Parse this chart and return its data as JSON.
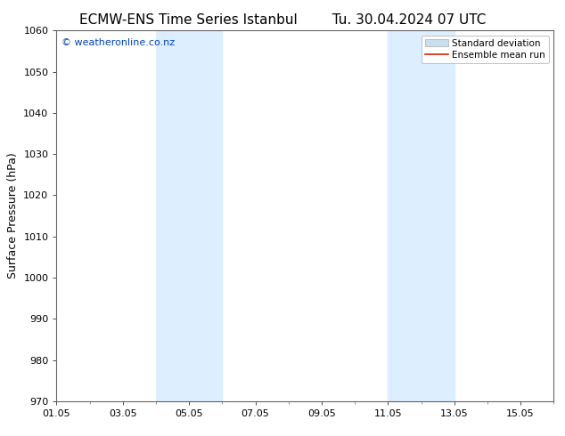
{
  "title": "ECMW-ENS Time Series Istanbul",
  "title2": "Tu. 30.04.2024 07 UTC",
  "ylabel": "Surface Pressure (hPa)",
  "ylim": [
    970,
    1060
  ],
  "yticks": [
    970,
    980,
    990,
    1000,
    1010,
    1020,
    1030,
    1040,
    1050,
    1060
  ],
  "xtick_labels": [
    "01.05",
    "03.05",
    "05.05",
    "07.05",
    "09.05",
    "11.05",
    "13.05",
    "15.05"
  ],
  "xtick_days": [
    1,
    3,
    5,
    7,
    9,
    11,
    13,
    15
  ],
  "xlim_days": [
    1,
    16
  ],
  "shaded_bands": [
    {
      "x_start": 4,
      "x_end": 6,
      "color": "#dceeff"
    },
    {
      "x_start": 11,
      "x_end": 13,
      "color": "#dceeff"
    }
  ],
  "watermark": "© weatheronline.co.nz",
  "watermark_color": "#0044bb",
  "legend_entries": [
    {
      "label": "Standard deviation",
      "type": "patch",
      "facecolor": "#c8dff0",
      "edgecolor": "#aaaaaa"
    },
    {
      "label": "Ensemble mean run",
      "type": "line",
      "color": "#cc2200"
    }
  ],
  "bg_color": "#ffffff",
  "spine_color": "#666666",
  "tick_color": "#000000",
  "title_fontsize": 11,
  "ylabel_fontsize": 9,
  "tick_fontsize": 8,
  "watermark_fontsize": 8,
  "legend_fontsize": 7.5
}
